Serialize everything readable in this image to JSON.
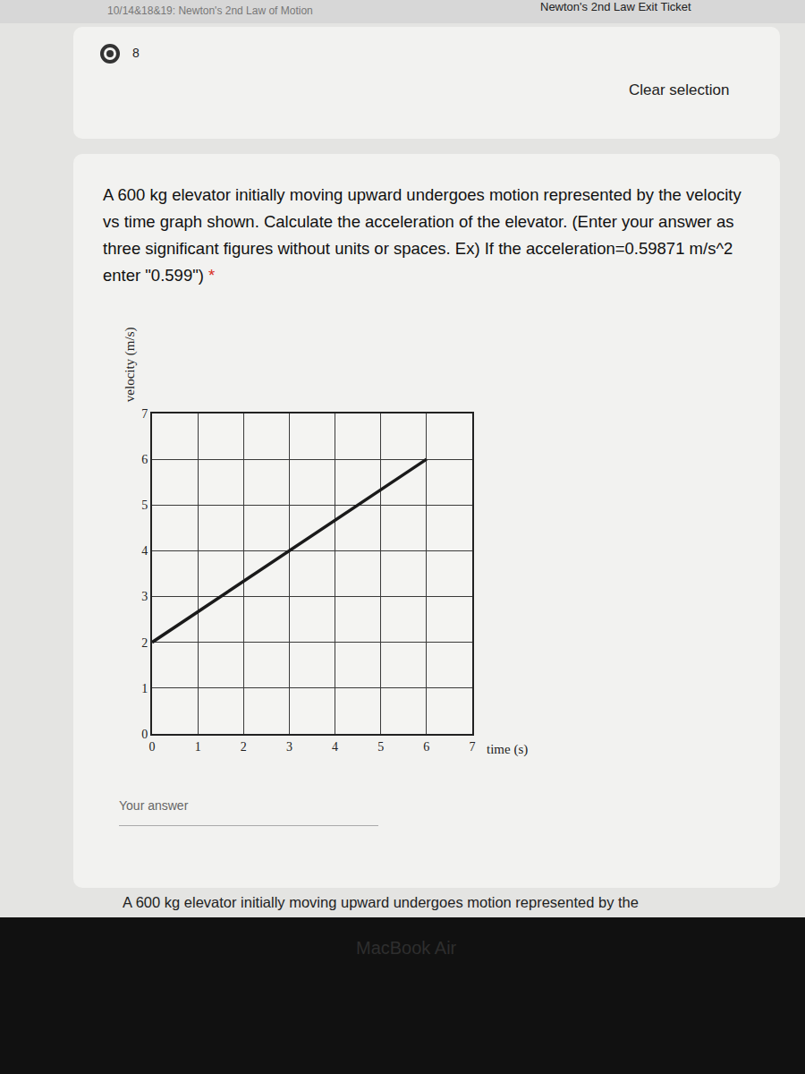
{
  "page": {
    "header_left": "10/14&18&19: Newton's 2nd Law of Motion",
    "header_right": "Newton's 2nd Law Exit Ticket",
    "option": "8",
    "clear": "Clear selection",
    "question": "A 600 kg elevator initially moving upward undergoes motion represented by the velocity vs time graph shown. Calculate the acceleration of the elevator. (Enter your answer as three significant figures without units or spaces. Ex) If the acceleration=0.59871 m/s^2 enter \"0.599\")",
    "required": "*",
    "answer_placeholder": "Your answer",
    "next_question": "A 600 kg elevator initially moving upward undergoes motion represented by the",
    "device": "MacBook Air"
  },
  "chart_data": {
    "type": "line",
    "x_label": "time (s)",
    "y_label": "velocity (m/s)",
    "x": [
      0,
      6
    ],
    "values": [
      2,
      6
    ],
    "color": "#1a1a1a",
    "xlim": [
      0,
      7
    ],
    "ylim": [
      0,
      7
    ],
    "xticks": [
      0,
      1,
      2,
      3,
      4,
      5,
      6,
      7
    ],
    "yticks": [
      0,
      1,
      2,
      3,
      4,
      5,
      6,
      7
    ],
    "grid": true
  }
}
